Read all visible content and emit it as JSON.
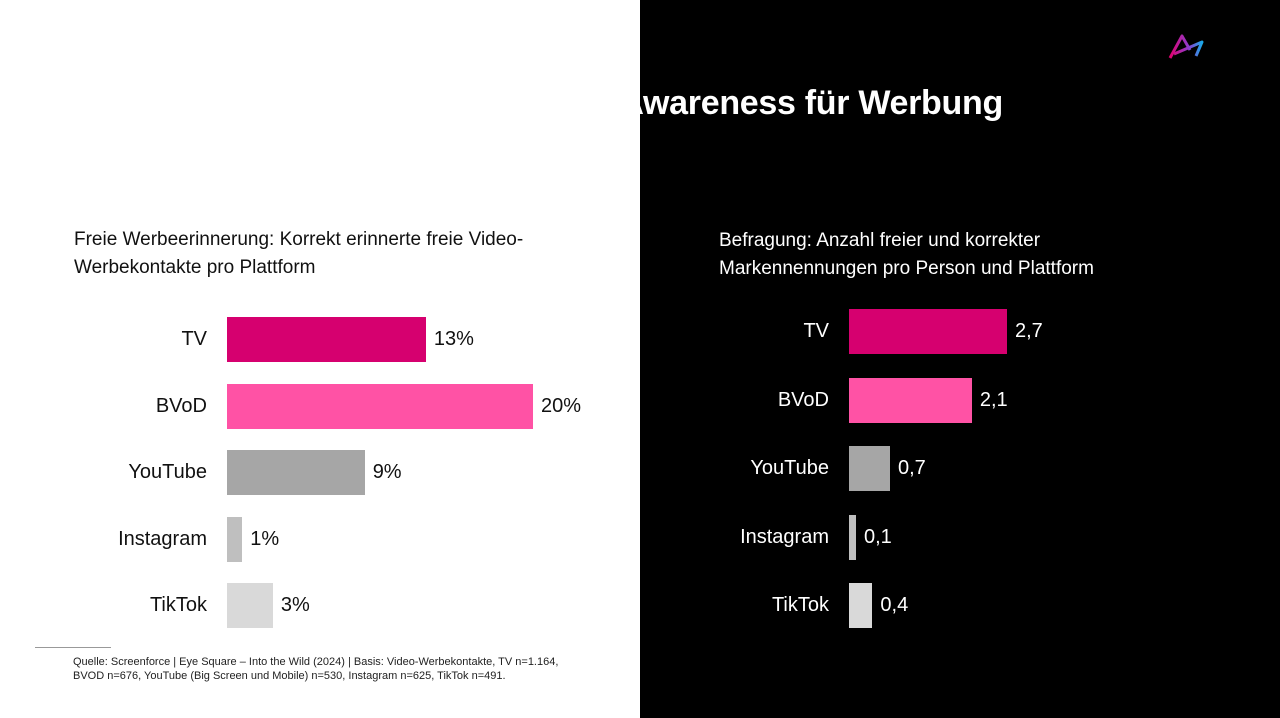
{
  "title": "TV und BVoD erzielen die höchste Awareness für Werbung",
  "logo": "brand-logo",
  "footnote": {
    "line1": "Quelle: Screenforce | Eye Square – Into the Wild (2024) | Basis: Video-Werbekontakte, TV n=1.164,",
    "line2": "BVOD n=676, YouTube (Big Screen und Mobile) n=530, Instagram n=625, TikTok n=491."
  },
  "chart_data": [
    {
      "type": "bar",
      "orientation": "horizontal",
      "title_line1": "Freie Werbeerinnerung: Korrekt erinnerte freie Video-",
      "title_line2": "Werbekontakte pro Plattform",
      "categories": [
        "TV",
        "BVoD",
        "YouTube",
        "Instagram",
        "TikTok"
      ],
      "values": [
        13,
        20,
        9,
        1,
        3
      ],
      "labels": [
        "13%",
        "20%",
        "9%",
        "1%",
        "3%"
      ],
      "unit": "%",
      "xlim": [
        0,
        20
      ],
      "colors": [
        "#d6006f",
        "#ff52a5",
        "#a6a6a6",
        "#bfbfbf",
        "#d9d9d9"
      ]
    },
    {
      "type": "bar",
      "orientation": "horizontal",
      "title_line1": "Befragung: Anzahl freier und korrekter",
      "title_line2": "Markennennungen pro Person und Plattform",
      "categories": [
        "TV",
        "BVoD",
        "YouTube",
        "Instagram",
        "TikTok"
      ],
      "values": [
        2.7,
        2.1,
        0.7,
        0.1,
        0.4
      ],
      "labels": [
        "2,7",
        "2,1",
        "0,7",
        "0,1",
        "0,4"
      ],
      "xlim": [
        0,
        2.7
      ],
      "colors": [
        "#d6006f",
        "#ff52a5",
        "#a6a6a6",
        "#bfbfbf",
        "#d9d9d9"
      ]
    }
  ]
}
